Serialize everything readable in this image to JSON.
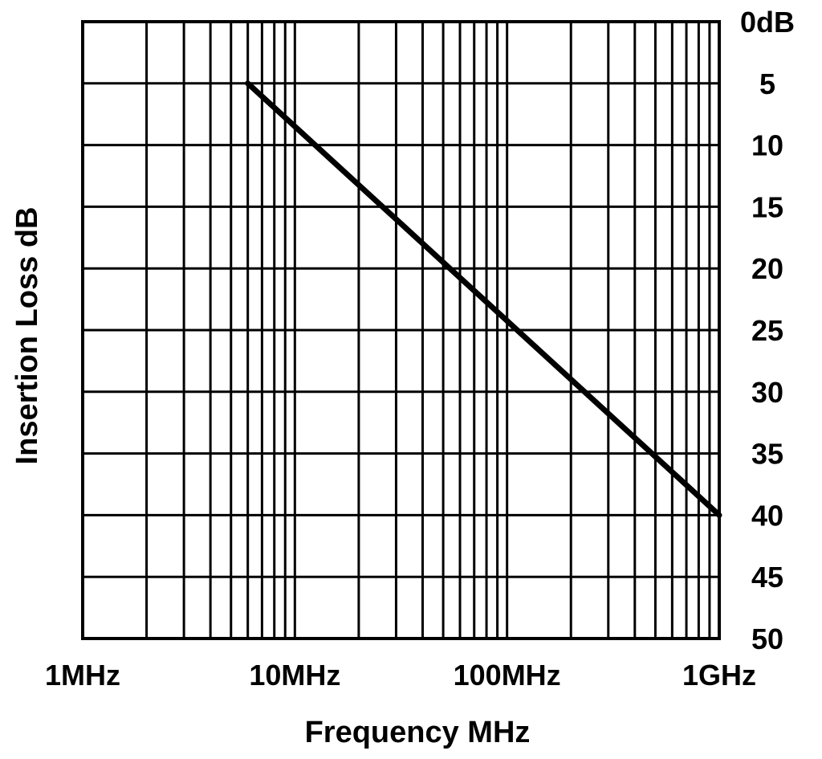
{
  "chart_data": {
    "type": "line",
    "title": "",
    "xlabel": "Frequency MHz",
    "ylabel": "Insertion Loss dB",
    "x_scale": "log",
    "x_unit": "MHz",
    "xlim": [
      1,
      1000
    ],
    "ylim": [
      0,
      50
    ],
    "y_inverted": true,
    "grid": true,
    "x_ticks": [
      {
        "value": 1,
        "label": "1MHz"
      },
      {
        "value": 10,
        "label": "10MHz"
      },
      {
        "value": 100,
        "label": "100MHz"
      },
      {
        "value": 1000,
        "label": "1GHz"
      }
    ],
    "y_ticks": [
      {
        "value": 0,
        "label": "0dB"
      },
      {
        "value": 5,
        "label": "5"
      },
      {
        "value": 10,
        "label": "10"
      },
      {
        "value": 15,
        "label": "15"
      },
      {
        "value": 20,
        "label": "20"
      },
      {
        "value": 25,
        "label": "25"
      },
      {
        "value": 30,
        "label": "30"
      },
      {
        "value": 35,
        "label": "35"
      },
      {
        "value": 40,
        "label": "40"
      },
      {
        "value": 45,
        "label": "45"
      },
      {
        "value": 50,
        "label": "50"
      }
    ],
    "series": [
      {
        "x": [
          6,
          1000
        ],
        "y": [
          5,
          40
        ],
        "color": "#000000"
      }
    ]
  }
}
